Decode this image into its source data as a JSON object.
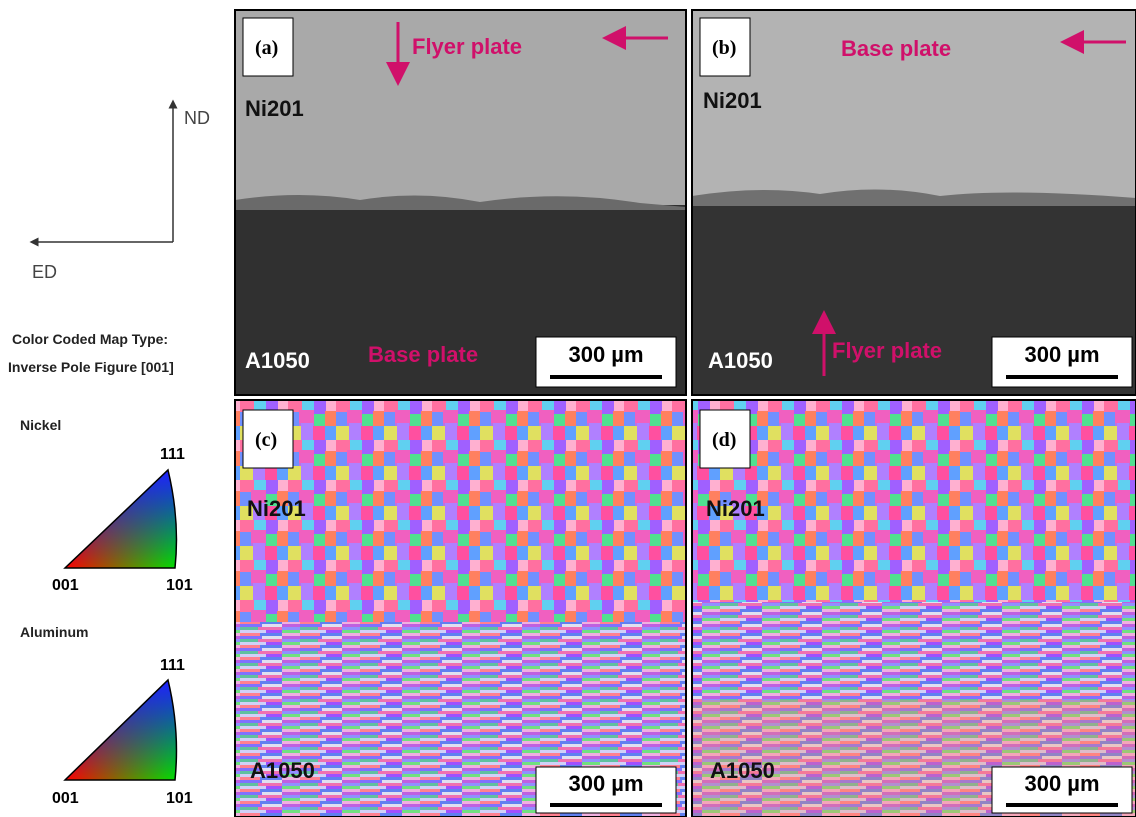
{
  "axes": {
    "nd": "ND",
    "ed": "ED"
  },
  "legend": {
    "map_type": [
      "Color Coded Map Type:",
      "Inverse Pole Figure [001]"
    ],
    "keys": [
      {
        "title": "Nickel",
        "corners": [
          "111",
          "001",
          "101"
        ]
      },
      {
        "title": "Aluminum",
        "corners": [
          "111",
          "001",
          "101"
        ]
      }
    ]
  },
  "panels": [
    {
      "label": "(a)",
      "top_material": "Ni201",
      "bottom_material": "A1050",
      "annotations": [
        "Flyer plate",
        "Base plate"
      ],
      "scale_bar": "300 µm"
    },
    {
      "label": "(b)",
      "top_material": "Ni201",
      "bottom_material": "A1050",
      "annotations": [
        "Base plate",
        "Flyer plate"
      ],
      "scale_bar": "300 µm"
    },
    {
      "label": "(c)",
      "top_material": "Ni201",
      "bottom_material": "A1050",
      "scale_bar": "300 µm"
    },
    {
      "label": "(d)",
      "top_material": "Ni201",
      "bottom_material": "A1050",
      "scale_bar": "300 µm"
    }
  ]
}
